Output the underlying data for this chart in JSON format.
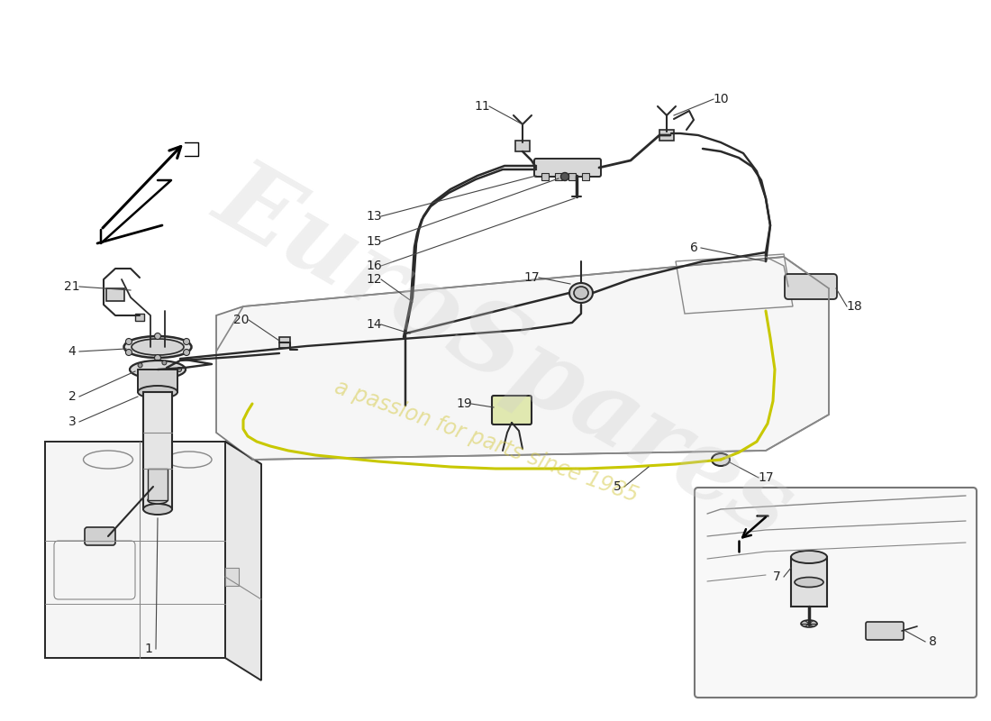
{
  "bg_color": "#ffffff",
  "lc": "#2a2a2a",
  "lc_light": "#888888",
  "lc_thin": "#aaaaaa",
  "yellow": "#c8c800",
  "watermark_color": "#cccccc",
  "watermark_alpha": 0.3,
  "subtext_color": "#d4c840",
  "subtext_alpha": 0.5
}
